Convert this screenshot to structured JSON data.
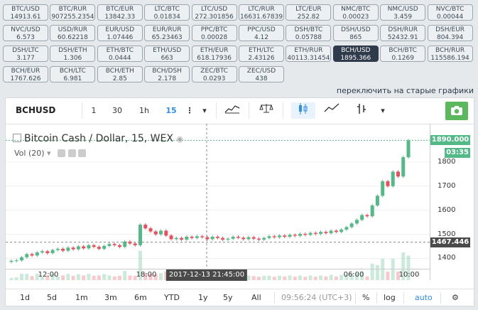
{
  "pairs": [
    {
      "name": "BTC/USD",
      "value": "14913.61"
    },
    {
      "name": "BTC/RUR",
      "value": "907255.2354"
    },
    {
      "name": "BTC/EUR",
      "value": "13842.33"
    },
    {
      "name": "LTC/BTC",
      "value": "0.01834"
    },
    {
      "name": "LTC/USD",
      "value": "272.301856"
    },
    {
      "name": "LTC/RUR",
      "value": "16631.67839"
    },
    {
      "name": "LTC/EUR",
      "value": "252.82"
    },
    {
      "name": "NMC/BTC",
      "value": "0.00023"
    },
    {
      "name": "NMC/USD",
      "value": "3.459"
    },
    {
      "name": "NVC/BTC",
      "value": "0.00044"
    },
    {
      "name": "NVC/USD",
      "value": "6.573"
    },
    {
      "name": "USD/RUR",
      "value": "60.62218"
    },
    {
      "name": "EUR/USD",
      "value": "1.07446"
    },
    {
      "name": "EUR/RUR",
      "value": "65.23463"
    },
    {
      "name": "PPC/BTC",
      "value": "0.00028"
    },
    {
      "name": "PPC/USD",
      "value": "4.12"
    },
    {
      "name": "DSH/BTC",
      "value": "0.05788"
    },
    {
      "name": "DSH/USD",
      "value": "865"
    },
    {
      "name": "DSH/RUR",
      "value": "52432.91"
    },
    {
      "name": "DSH/EUR",
      "value": "804.394"
    },
    {
      "name": "DSH/LTC",
      "value": "3.177"
    },
    {
      "name": "DSH/ETH",
      "value": "1.306"
    },
    {
      "name": "ETH/BTC",
      "value": "0.0444"
    },
    {
      "name": "ETH/USD",
      "value": "663"
    },
    {
      "name": "ETH/EUR",
      "value": "618.17936"
    },
    {
      "name": "ETH/LTC",
      "value": "2.43126"
    },
    {
      "name": "ETH/RUR",
      "value": "40113.31454"
    },
    {
      "name": "BCH/USD",
      "value": "1895.366",
      "active": true
    },
    {
      "name": "BCH/BTC",
      "value": "0.1269"
    },
    {
      "name": "BCH/RUR",
      "value": "115586.194"
    },
    {
      "name": "BCH/EUR",
      "value": "1767.626"
    },
    {
      "name": "BCH/LTC",
      "value": "6.981"
    },
    {
      "name": "BCH/ETH",
      "value": "2.85"
    },
    {
      "name": "BCH/DSH",
      "value": "2.178"
    },
    {
      "name": "ZEC/BTC",
      "value": "0.0293"
    },
    {
      "name": "ZEC/USD",
      "value": "438"
    }
  ],
  "switch_link": "переключить на старые графики",
  "toolbar": {
    "symbol": "BCHUSD",
    "intervals": [
      "1",
      "30",
      "1h",
      "15"
    ],
    "active_interval": "15"
  },
  "legend": {
    "title": "Bitcoin Cash / Dollar, 15, WEX",
    "volume": "Vol (20)"
  },
  "price_tags": {
    "last": "1890.000",
    "countdown": "03:35",
    "cursor": "1467.446"
  },
  "crosshair_time": "2017-12-13 21:45:00",
  "bottom": {
    "ranges": [
      "1d",
      "5d",
      "1m",
      "3m",
      "6m",
      "YTD",
      "1y",
      "5y",
      "All"
    ],
    "clock": "09:56:24 (UTC+3)",
    "percent": "%",
    "log": "log",
    "auto": "auto"
  },
  "colors": {
    "up": "#53b987",
    "down": "#eb4d5c",
    "active_pair": "#2f3a4a",
    "accent": "#2e8ee8"
  },
  "chart_data": {
    "type": "candlestick",
    "title": "Bitcoin Cash / Dollar, 15, WEX",
    "ylim": [
      1310,
      1900
    ],
    "yticks": [
      1400,
      1500,
      1600,
      1700,
      1800
    ],
    "xticks": [
      "12:00",
      "18:00",
      "06:00",
      "10:00"
    ],
    "last_price": 1890,
    "close": [
      1390,
      1392,
      1405,
      1418,
      1412,
      1425,
      1430,
      1422,
      1435,
      1440,
      1432,
      1445,
      1438,
      1450,
      1442,
      1455,
      1448,
      1440,
      1452,
      1460,
      1455,
      1448,
      1470,
      1462,
      1455,
      1540,
      1525,
      1512,
      1500,
      1515,
      1495,
      1480,
      1485,
      1478,
      1490,
      1485,
      1492,
      1488,
      1480,
      1490,
      1485,
      1478,
      1482,
      1490,
      1486,
      1480,
      1488,
      1482,
      1478,
      1485,
      1492,
      1488,
      1495,
      1490,
      1498,
      1494,
      1502,
      1498,
      1506,
      1502,
      1510,
      1505,
      1515,
      1510,
      1520,
      1530,
      1545,
      1560,
      1580,
      1575,
      1620,
      1660,
      1720,
      1700,
      1760,
      1740,
      1820,
      1890
    ]
  }
}
